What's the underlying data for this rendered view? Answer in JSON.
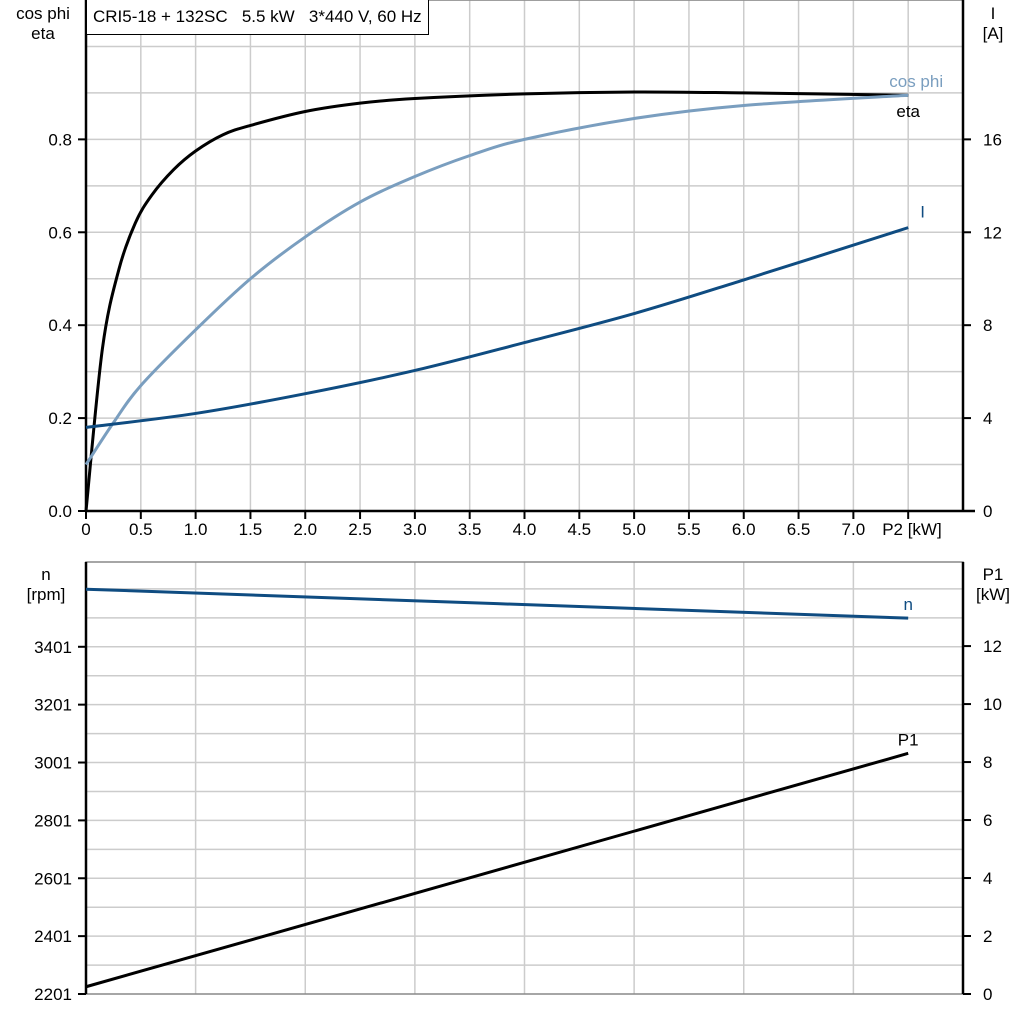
{
  "title": "CRI5-18 + 132SC   5.5 kW   3*440 V, 60 Hz",
  "colors": {
    "eta": "#000000",
    "cos_phi": "#7a9ebf",
    "I": "#0f4c81",
    "n": "#0f4c81",
    "P1": "#000000",
    "grid": "#cccccc"
  },
  "chart_data": [
    {
      "type": "line",
      "xlabel": "P2 [kW]",
      "xlim": [
        0,
        8
      ],
      "x_ticks": [
        "0",
        "0.5",
        "1.0",
        "1.5",
        "2.0",
        "2.5",
        "3.0",
        "3.5",
        "4.0",
        "4.5",
        "5.0",
        "5.5",
        "6.0",
        "6.5",
        "7.0"
      ],
      "ylabel_left": [
        "cos phi",
        "eta"
      ],
      "ylim_left": [
        0,
        1.1
      ],
      "y_ticks_left": [
        "0.0",
        "0.2",
        "0.4",
        "0.6",
        "0.8"
      ],
      "ylabel_right": [
        "I",
        "[A]"
      ],
      "ylim_right": [
        0,
        22
      ],
      "y_ticks_right": [
        "0",
        "4",
        "8",
        "12",
        "16"
      ],
      "grid": true,
      "series": [
        {
          "name": "eta",
          "axis": "left",
          "x": [
            0,
            0.15,
            0.3,
            0.45,
            0.6,
            0.8,
            1.0,
            1.25,
            1.5,
            2.0,
            2.5,
            3.0,
            4.0,
            5.0,
            6.0,
            7.5
          ],
          "y": [
            0,
            0.35,
            0.52,
            0.62,
            0.68,
            0.735,
            0.775,
            0.81,
            0.83,
            0.86,
            0.878,
            0.888,
            0.898,
            0.902,
            0.9,
            0.895
          ]
        },
        {
          "name": "cos phi",
          "axis": "left",
          "x": [
            0,
            0.25,
            0.5,
            1.0,
            1.5,
            2.0,
            2.5,
            3.0,
            3.5,
            4.0,
            5.0,
            6.0,
            7.5
          ],
          "y": [
            0.1,
            0.19,
            0.27,
            0.39,
            0.5,
            0.59,
            0.665,
            0.72,
            0.765,
            0.8,
            0.845,
            0.873,
            0.895
          ]
        },
        {
          "name": "I",
          "axis": "right",
          "x": [
            0,
            1.0,
            2.0,
            3.0,
            4.0,
            5.0,
            6.0,
            7.5
          ],
          "y": [
            3.6,
            4.2,
            5.05,
            6.05,
            7.25,
            8.5,
            9.95,
            12.2
          ]
        }
      ]
    },
    {
      "type": "line",
      "xlim": [
        0,
        8
      ],
      "ylabel_left": [
        "n",
        "[rpm]"
      ],
      "ylim_left": [
        2201,
        3694
      ],
      "y_ticks_left": [
        "2201",
        "2401",
        "2601",
        "2801",
        "3001",
        "3201",
        "3401"
      ],
      "ylabel_right": [
        "P1",
        "[kW]"
      ],
      "ylim_right": [
        0,
        14.9
      ],
      "y_ticks_right": [
        "0",
        "2",
        "4",
        "6",
        "8",
        "10",
        "12"
      ],
      "grid": true,
      "series": [
        {
          "name": "n",
          "axis": "left",
          "x": [
            0,
            7.5
          ],
          "y": [
            3600,
            3500
          ]
        },
        {
          "name": "P1",
          "axis": "right",
          "x": [
            0,
            7.5
          ],
          "y": [
            0.25,
            8.3
          ]
        }
      ]
    }
  ]
}
